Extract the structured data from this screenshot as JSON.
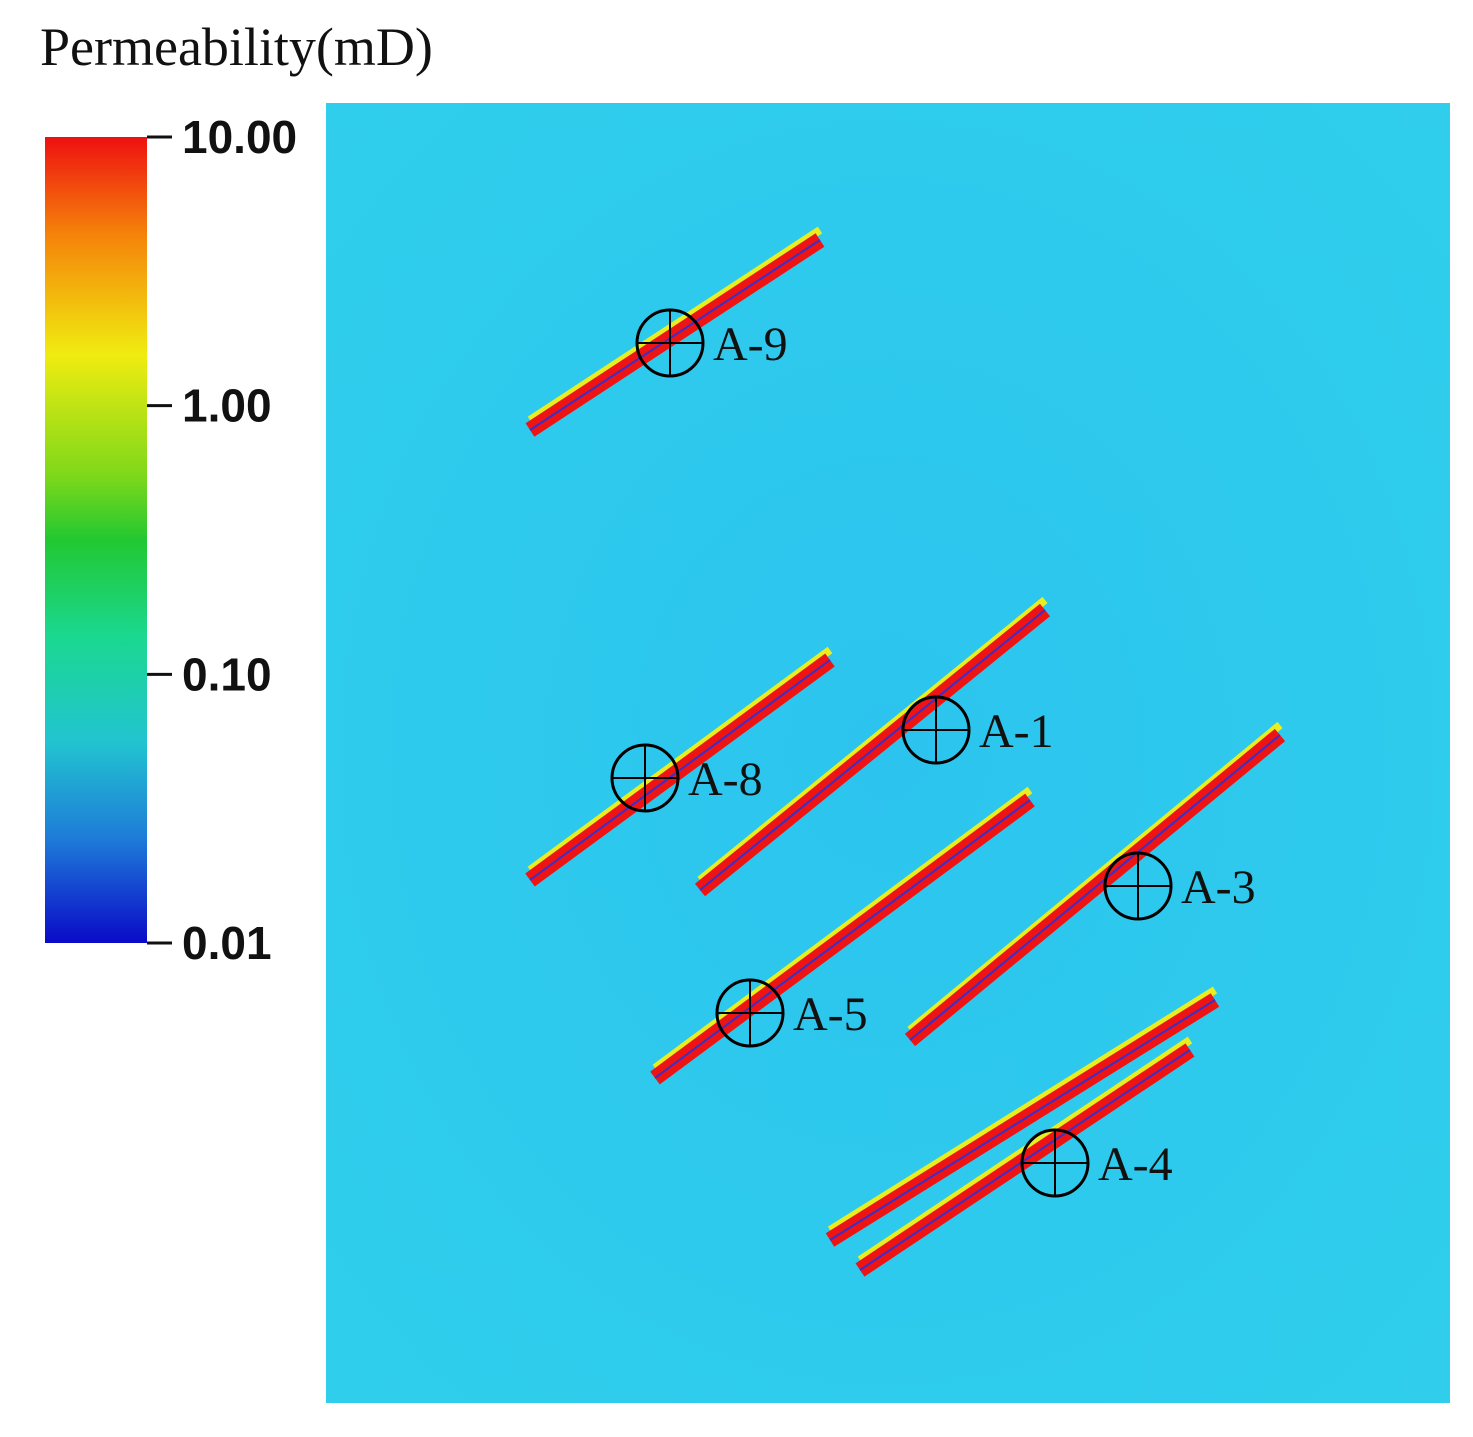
{
  "colorbar": {
    "title": "Permeability(mD)",
    "scale": "log",
    "lim": [
      0.01,
      10
    ],
    "ticks": [
      {
        "value": 10,
        "label": "10.00"
      },
      {
        "value": 1,
        "label": "1.00"
      },
      {
        "value": 0.1,
        "label": "0.10"
      },
      {
        "value": 0.01,
        "label": "0.01"
      }
    ]
  },
  "wells": [
    {
      "label": "A-9"
    },
    {
      "label": "A-1"
    },
    {
      "label": "A-8"
    },
    {
      "label": "A-3"
    },
    {
      "label": "A-5"
    },
    {
      "label": "A-4"
    }
  ]
}
